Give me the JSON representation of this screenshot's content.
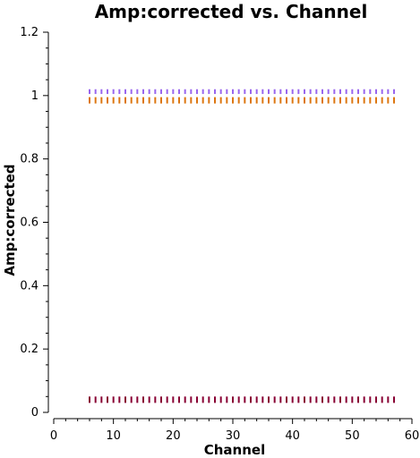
{
  "chart_data": {
    "type": "scatter",
    "title": "Amp:corrected vs. Channel",
    "xlabel": "Channel",
    "ylabel": "Amp:corrected",
    "xlim": [
      0,
      60
    ],
    "ylim": [
      0,
      1.2
    ],
    "x_ticks": [
      0,
      10,
      20,
      30,
      40,
      50,
      60
    ],
    "y_ticks": [
      0,
      0.2,
      0.4,
      0.6,
      0.8,
      1,
      1.2
    ],
    "x_tick_labels": [
      "0",
      "10",
      "20",
      "30",
      "40",
      "50",
      "60"
    ],
    "y_tick_labels": [
      "0",
      "0.2",
      "0.4",
      "0.6",
      "0.8",
      "1",
      "1.2"
    ],
    "x_minor_step": 2,
    "grid": false,
    "legend": "none",
    "series": [
      {
        "color": "#9966ee",
        "x": [
          6,
          7,
          8,
          9,
          10,
          11,
          12,
          13,
          14,
          15,
          16,
          17,
          18,
          19,
          20,
          21,
          22,
          23,
          24,
          25,
          26,
          27,
          28,
          29,
          30,
          31,
          32,
          33,
          34,
          35,
          36,
          37,
          38,
          39,
          40,
          41,
          42,
          43,
          44,
          45,
          46,
          47,
          48,
          49,
          50,
          51,
          52,
          53,
          54,
          55,
          56,
          57
        ],
        "y_low": [
          1.005,
          1.005,
          1.005,
          1.005,
          1.005,
          1.005,
          1.005,
          1.005,
          1.005,
          1.005,
          1.005,
          1.005,
          1.005,
          1.005,
          1.005,
          1.005,
          1.005,
          1.005,
          1.005,
          1.005,
          1.005,
          1.005,
          1.005,
          1.005,
          1.005,
          1.005,
          1.005,
          1.005,
          1.005,
          1.005,
          1.005,
          1.005,
          1.005,
          1.005,
          1.005,
          1.005,
          1.005,
          1.005,
          1.005,
          1.005,
          1.005,
          1.005,
          1.005,
          1.005,
          1.005,
          1.005,
          1.005,
          1.005,
          1.005,
          1.005,
          1.005,
          1.005
        ],
        "y_high": [
          1.02,
          1.02,
          1.02,
          1.02,
          1.02,
          1.02,
          1.02,
          1.02,
          1.02,
          1.02,
          1.02,
          1.02,
          1.02,
          1.02,
          1.02,
          1.02,
          1.02,
          1.02,
          1.02,
          1.02,
          1.02,
          1.02,
          1.02,
          1.02,
          1.02,
          1.02,
          1.02,
          1.02,
          1.02,
          1.02,
          1.02,
          1.02,
          1.02,
          1.02,
          1.02,
          1.02,
          1.02,
          1.02,
          1.02,
          1.02,
          1.02,
          1.02,
          1.02,
          1.02,
          1.02,
          1.02,
          1.02,
          1.02,
          1.02,
          1.02,
          1.02,
          1.02
        ]
      },
      {
        "color": "#dd7711",
        "x": [
          6,
          7,
          8,
          9,
          10,
          11,
          12,
          13,
          14,
          15,
          16,
          17,
          18,
          19,
          20,
          21,
          22,
          23,
          24,
          25,
          26,
          27,
          28,
          29,
          30,
          31,
          32,
          33,
          34,
          35,
          36,
          37,
          38,
          39,
          40,
          41,
          42,
          43,
          44,
          45,
          46,
          47,
          48,
          49,
          50,
          51,
          52,
          53,
          54,
          55,
          56,
          57
        ],
        "y_low": [
          0.975,
          0.975,
          0.975,
          0.975,
          0.975,
          0.975,
          0.975,
          0.975,
          0.975,
          0.975,
          0.975,
          0.975,
          0.975,
          0.975,
          0.975,
          0.975,
          0.975,
          0.975,
          0.975,
          0.975,
          0.975,
          0.975,
          0.975,
          0.975,
          0.975,
          0.975,
          0.975,
          0.975,
          0.975,
          0.975,
          0.975,
          0.975,
          0.975,
          0.975,
          0.975,
          0.975,
          0.975,
          0.975,
          0.975,
          0.975,
          0.975,
          0.975,
          0.975,
          0.975,
          0.975,
          0.975,
          0.975,
          0.975,
          0.975,
          0.975,
          0.975,
          0.975
        ],
        "y_high": [
          0.995,
          0.995,
          0.995,
          0.995,
          0.995,
          0.995,
          0.995,
          0.995,
          0.995,
          0.995,
          0.995,
          0.995,
          0.995,
          0.995,
          0.995,
          0.995,
          0.995,
          0.995,
          0.995,
          0.995,
          0.995,
          0.995,
          0.995,
          0.995,
          0.995,
          0.995,
          0.995,
          0.995,
          0.995,
          0.995,
          0.995,
          0.995,
          0.995,
          0.995,
          0.995,
          0.995,
          0.995,
          0.995,
          0.995,
          0.995,
          0.995,
          0.995,
          0.995,
          0.995,
          0.995,
          0.995,
          0.995,
          0.995,
          0.995,
          0.995,
          0.995,
          0.995
        ]
      },
      {
        "color": "#880033",
        "x": [
          6,
          7,
          8,
          9,
          10,
          11,
          12,
          13,
          14,
          15,
          16,
          17,
          18,
          19,
          20,
          21,
          22,
          23,
          24,
          25,
          26,
          27,
          28,
          29,
          30,
          31,
          32,
          33,
          34,
          35,
          36,
          37,
          38,
          39,
          40,
          41,
          42,
          43,
          44,
          45,
          46,
          47,
          48,
          49,
          50,
          51,
          52,
          53,
          54,
          55,
          56,
          57
        ],
        "y_low": [
          0.03,
          0.03,
          0.03,
          0.03,
          0.03,
          0.03,
          0.03,
          0.03,
          0.03,
          0.03,
          0.03,
          0.03,
          0.03,
          0.03,
          0.03,
          0.03,
          0.03,
          0.03,
          0.03,
          0.03,
          0.03,
          0.03,
          0.03,
          0.03,
          0.03,
          0.03,
          0.03,
          0.03,
          0.03,
          0.03,
          0.03,
          0.03,
          0.03,
          0.03,
          0.03,
          0.03,
          0.03,
          0.03,
          0.03,
          0.03,
          0.03,
          0.03,
          0.03,
          0.03,
          0.03,
          0.03,
          0.03,
          0.03,
          0.03,
          0.03,
          0.03,
          0.03
        ],
        "y_high": [
          0.05,
          0.05,
          0.05,
          0.05,
          0.05,
          0.05,
          0.05,
          0.05,
          0.05,
          0.05,
          0.05,
          0.05,
          0.05,
          0.05,
          0.05,
          0.05,
          0.05,
          0.05,
          0.05,
          0.05,
          0.05,
          0.05,
          0.05,
          0.05,
          0.05,
          0.05,
          0.05,
          0.05,
          0.05,
          0.05,
          0.05,
          0.05,
          0.05,
          0.05,
          0.05,
          0.05,
          0.05,
          0.05,
          0.05,
          0.05,
          0.05,
          0.05,
          0.05,
          0.05,
          0.05,
          0.05,
          0.05,
          0.05,
          0.05,
          0.05,
          0.05,
          0.05
        ]
      }
    ]
  }
}
